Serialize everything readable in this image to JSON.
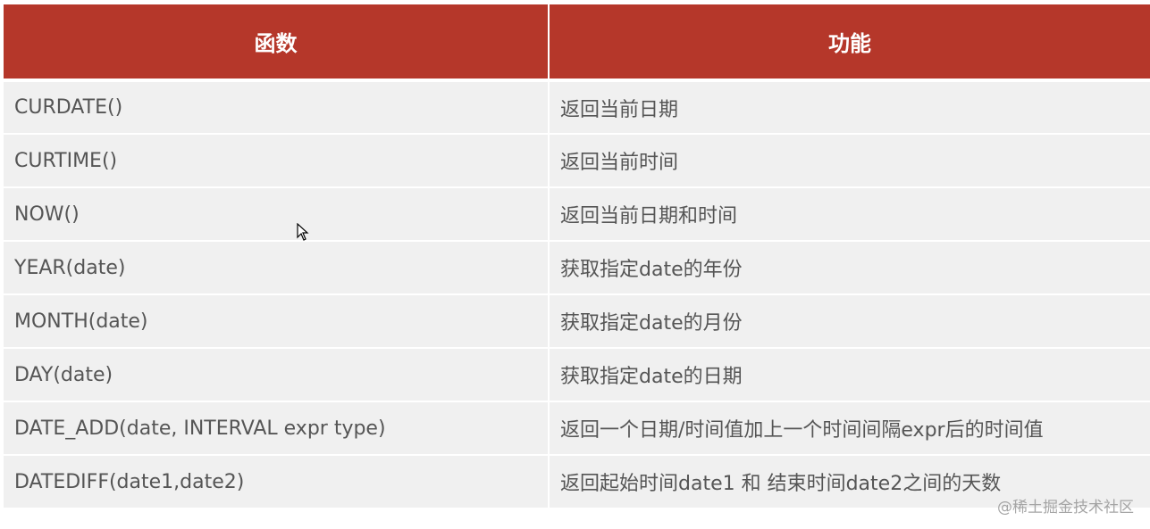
{
  "header": {
    "col1": "函数",
    "col2": "功能"
  },
  "rows": [
    {
      "func": "CURDATE()",
      "desc": "返回当前日期"
    },
    {
      "func": "CURTIME()",
      "desc": "返回当前时间"
    },
    {
      "func": "NOW()",
      "desc": "返回当前日期和时间"
    },
    {
      "func": "YEAR(date)",
      "desc": "获取指定date的年份"
    },
    {
      "func": "MONTH(date)",
      "desc": "获取指定date的月份"
    },
    {
      "func": "DAY(date)",
      "desc": "获取指定date的日期"
    },
    {
      "func": "DATE_ADD(date, INTERVAL expr  type)",
      "desc": "返回一个日期/时间值加上一个时间间隔expr后的时间值"
    },
    {
      "func": "DATEDIFF(date1,date2)",
      "desc": "返回起始时间date1 和 结束时间date2之间的天数"
    }
  ],
  "watermark": "@稀土掘金技术社区",
  "colors": {
    "header_bg": "#b5372a",
    "row_bg": "#f0f0f0"
  }
}
